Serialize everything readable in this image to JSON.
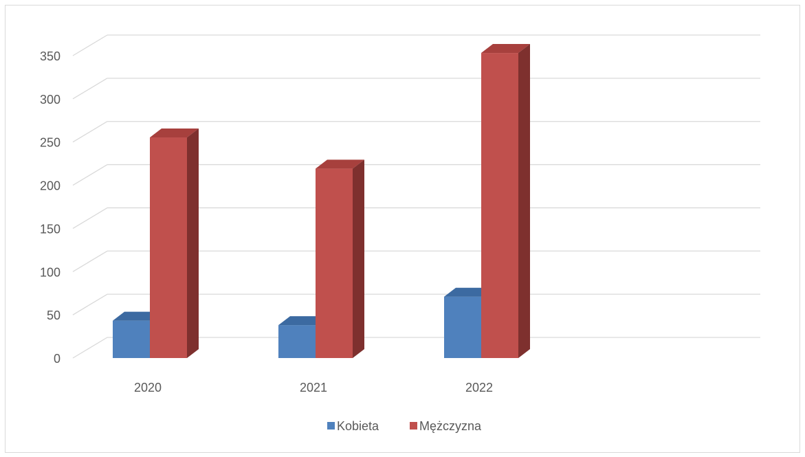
{
  "chart_data": {
    "type": "bar",
    "style": "3d-clustered-column",
    "categories": [
      "2020",
      "2021",
      "2022"
    ],
    "series": [
      {
        "name": "Kobieta",
        "values": [
          42,
          37,
          69
        ],
        "color": "#4f81bd",
        "top_color": "#3c6aa1",
        "side_color": "#365f91"
      },
      {
        "name": "Mężczyzna",
        "values": [
          248,
          213,
          343
        ],
        "color": "#c0504d",
        "top_color": "#a7403d",
        "side_color": "#7e302e"
      }
    ],
    "ylim": [
      0,
      350
    ],
    "yticks": [
      "0",
      "50",
      "100",
      "150",
      "200",
      "250",
      "300",
      "350"
    ],
    "grid": true,
    "legend_position": "bottom",
    "title": "",
    "xlabel": "",
    "ylabel": ""
  }
}
